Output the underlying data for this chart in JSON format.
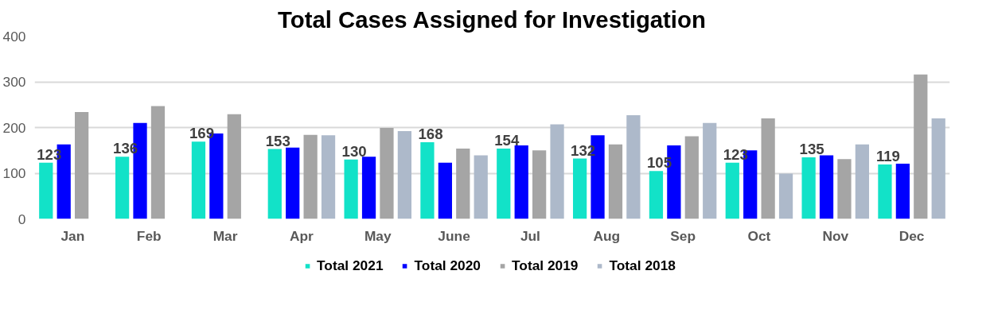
{
  "chart_data": {
    "type": "bar",
    "title": "Total Cases Assigned for Investigation",
    "categories": [
      "Jan",
      "Feb",
      "Mar",
      "Apr",
      "May",
      "June",
      "Jul",
      "Aug",
      "Sep",
      "Oct",
      "Nov",
      "Dec"
    ],
    "series": [
      {
        "name": "Total 2021",
        "color": "#12e2c8",
        "values": [
          123,
          136,
          169,
          153,
          130,
          168,
          154,
          132,
          105,
          123,
          135,
          119
        ],
        "value_labels": [
          "123",
          "136",
          "169",
          "153",
          "130",
          "168",
          "154",
          "132",
          "105",
          "123",
          "135",
          "119"
        ]
      },
      {
        "name": "Total 2020",
        "color": "#0000ff",
        "values": [
          163,
          210,
          187,
          156,
          136,
          123,
          161,
          183,
          161,
          150,
          139,
          121
        ]
      },
      {
        "name": "Total 2019",
        "color": "#a5a5a5",
        "values": [
          234,
          247,
          229,
          184,
          199,
          154,
          150,
          163,
          181,
          220,
          131,
          316
        ]
      },
      {
        "name": "Total 2018",
        "color": "#adb9ca",
        "values": [
          null,
          null,
          null,
          183,
          192,
          139,
          207,
          227,
          210,
          99,
          163,
          220
        ]
      }
    ],
    "ylim": [
      0,
      400
    ],
    "yticks": [
      0,
      100,
      200,
      300,
      400
    ],
    "grid": "y",
    "legend": "bottom"
  }
}
